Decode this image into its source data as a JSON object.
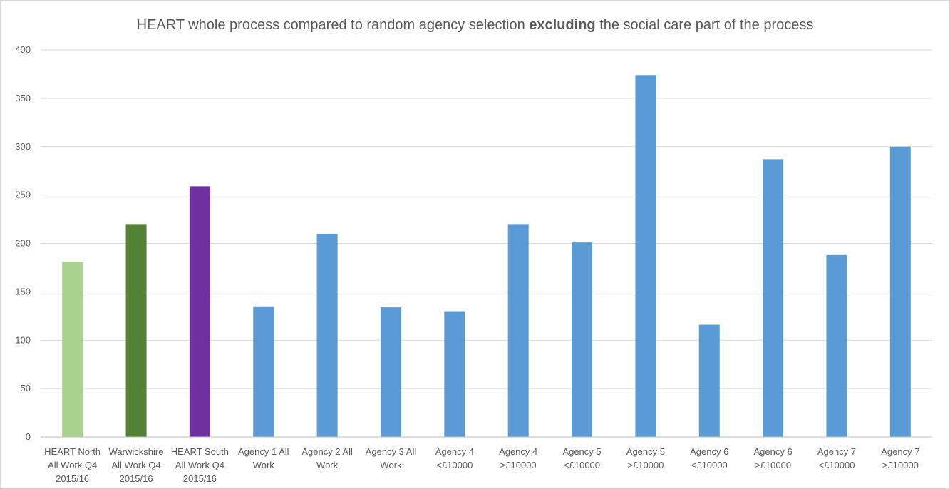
{
  "chart_data": {
    "type": "bar",
    "title_parts": {
      "before": "HEART whole process compared to random agency selection ",
      "bold": "excluding",
      "after": " the social care part of the process"
    },
    "xlabel": "",
    "ylabel": "",
    "ylim": [
      0,
      400
    ],
    "yticks": [
      0,
      50,
      100,
      150,
      200,
      250,
      300,
      350,
      400
    ],
    "grid": true,
    "legend": "none",
    "categories": [
      [
        "HEART North",
        "All Work Q4",
        "2015/16"
      ],
      [
        "Warwickshire",
        "All Work Q4",
        "2015/16"
      ],
      [
        "HEART South",
        "All Work Q4",
        "2015/16"
      ],
      [
        "Agency 1 All",
        "Work"
      ],
      [
        "Agency 2 All",
        "Work"
      ],
      [
        "Agency 3 All",
        "Work"
      ],
      [
        "Agency 4",
        "<£10000"
      ],
      [
        "Agency 4",
        ">£10000"
      ],
      [
        "Agency 5",
        "<£10000"
      ],
      [
        "Agency 5",
        ">£10000"
      ],
      [
        "Agency 6",
        "<£10000"
      ],
      [
        "Agency 6",
        ">£10000"
      ],
      [
        "Agency 7",
        "<£10000"
      ],
      [
        "Agency 7",
        ">£10000"
      ]
    ],
    "values": [
      181,
      220,
      259,
      135,
      210,
      134,
      130,
      220,
      201,
      374,
      116,
      287,
      188,
      300
    ],
    "bar_colors": [
      "#a9d18e",
      "#548235",
      "#7030a0",
      "#5b9bd5",
      "#5b9bd5",
      "#5b9bd5",
      "#5b9bd5",
      "#5b9bd5",
      "#5b9bd5",
      "#5b9bd5",
      "#5b9bd5",
      "#5b9bd5",
      "#5b9bd5",
      "#5b9bd5"
    ],
    "gridline_color": "#d9d9d9",
    "axis_color": "#bfbfbf",
    "text_color": "#595959"
  }
}
